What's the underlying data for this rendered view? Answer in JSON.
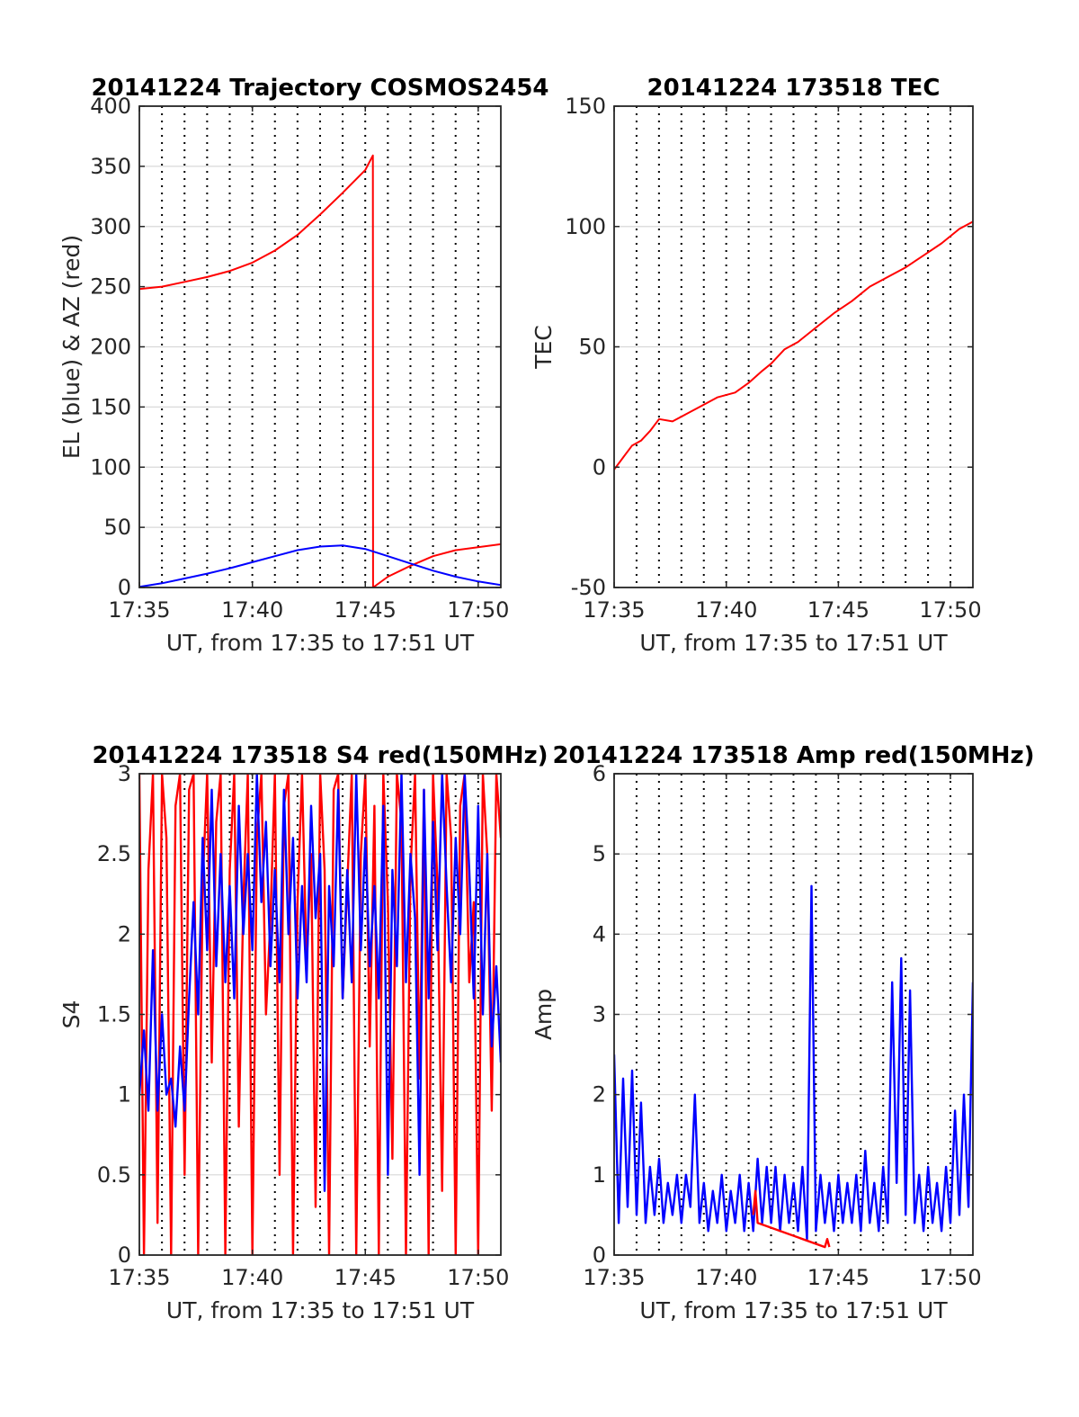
{
  "colors": {
    "red": "#ff0000",
    "blue": "#0000ff",
    "grid": "#d9d9d9",
    "axis": "#262626"
  },
  "chart_data": [
    {
      "type": "line",
      "title": "20141224 Trajectory COSMOS2454",
      "xlabel": "UT, from 17:35 to 17:51 UT",
      "ylabel": "EL (blue) & AZ (red)",
      "xlim": [
        17.5833,
        17.85
      ],
      "ylim": [
        0,
        400
      ],
      "xticks": [
        17.5833,
        17.6667,
        17.75,
        17.8333
      ],
      "xtick_labels": [
        "17:35",
        "17:40",
        "17:45",
        "17:50"
      ],
      "yticks": [
        0,
        50,
        100,
        150,
        200,
        250,
        300,
        350,
        400
      ],
      "ytick_labels": [
        "0",
        "50",
        "100",
        "150",
        "200",
        "250",
        "300",
        "350",
        "400"
      ],
      "vlines_dotted": true,
      "grid": "horizontal",
      "series": [
        {
          "color": "red",
          "x": [
            17.5833,
            17.6,
            17.6167,
            17.6333,
            17.65,
            17.6667,
            17.6833,
            17.7,
            17.7167,
            17.7333,
            17.75,
            17.7556,
            17.7557,
            17.7667,
            17.7833,
            17.8,
            17.8167,
            17.85
          ],
          "y": [
            248,
            250,
            254,
            258,
            263,
            270,
            280,
            293,
            310,
            328,
            347,
            359,
            0,
            9,
            18,
            26,
            31,
            36
          ]
        },
        {
          "color": "blue",
          "x": [
            17.5833,
            17.6,
            17.6167,
            17.6333,
            17.65,
            17.6667,
            17.6833,
            17.7,
            17.7167,
            17.7333,
            17.75,
            17.7667,
            17.7833,
            17.8,
            17.8167,
            17.8333,
            17.85
          ],
          "y": [
            0.5,
            3.5,
            7.5,
            11.5,
            16,
            21,
            26,
            31,
            34,
            35,
            32,
            26,
            20,
            14,
            9,
            5,
            2
          ]
        }
      ]
    },
    {
      "type": "line",
      "title": "20141224 173518 TEC",
      "xlabel": "UT, from 17:35 to 17:51 UT",
      "ylabel": "TEC",
      "xlim": [
        17.5833,
        17.85
      ],
      "ylim": [
        -50,
        150
      ],
      "xticks": [
        17.5833,
        17.6667,
        17.75,
        17.8333
      ],
      "xtick_labels": [
        "17:35",
        "17:40",
        "17:45",
        "17:50"
      ],
      "yticks": [
        -50,
        0,
        50,
        100,
        150
      ],
      "ytick_labels": [
        "-50",
        "0",
        "50",
        "100",
        "150"
      ],
      "vlines_dotted": true,
      "grid": "horizontal",
      "series": [
        {
          "color": "red",
          "x": [
            17.5833,
            17.59,
            17.5967,
            17.6033,
            17.61,
            17.6167,
            17.6267,
            17.6367,
            17.6467,
            17.66,
            17.6733,
            17.6833,
            17.6933,
            17.7,
            17.71,
            17.72,
            17.7333,
            17.7467,
            17.76,
            17.7733,
            17.7867,
            17.8,
            17.8133,
            17.8267,
            17.84,
            17.85
          ],
          "y": [
            -1,
            4,
            9,
            11,
            15,
            20,
            19,
            22,
            25,
            29,
            31,
            35,
            40,
            43,
            49,
            52,
            58,
            64,
            69,
            75,
            79,
            83,
            88,
            93,
            99,
            102
          ]
        }
      ]
    },
    {
      "type": "line",
      "title": "20141224 173518 S4 red(150MHz)",
      "xlabel": "UT, from 17:35 to 17:51 UT",
      "ylabel": "S4",
      "xlim": [
        17.5833,
        17.85
      ],
      "ylim": [
        0,
        3
      ],
      "xticks": [
        17.5833,
        17.6667,
        17.75,
        17.8333
      ],
      "xtick_labels": [
        "17:35",
        "17:40",
        "17:45",
        "17:50"
      ],
      "yticks": [
        0,
        0.5,
        1,
        1.5,
        2,
        2.5,
        3
      ],
      "ytick_labels": [
        "0",
        "0.5",
        "1",
        "1.5",
        "2",
        "2.5",
        "3"
      ],
      "vlines_dotted": true,
      "grid": "horizontal",
      "series": [
        {
          "color": "red",
          "x": [
            17.5833,
            17.5867,
            17.59,
            17.5933,
            17.5967,
            17.6,
            17.6033,
            17.6067,
            17.61,
            17.6133,
            17.6167,
            17.62,
            17.6233,
            17.6267,
            17.63,
            17.6333,
            17.6367,
            17.64,
            17.6433,
            17.6467,
            17.65,
            17.6533,
            17.6567,
            17.66,
            17.6633,
            17.6667,
            17.67,
            17.6733,
            17.6767,
            17.68,
            17.6833,
            17.6867,
            17.69,
            17.6933,
            17.6967,
            17.7,
            17.7033,
            17.7067,
            17.71,
            17.7133,
            17.7167,
            17.72,
            17.7233,
            17.7267,
            17.73,
            17.7333,
            17.7367,
            17.74,
            17.7433,
            17.7467,
            17.75,
            17.7533,
            17.7567,
            17.76,
            17.7633,
            17.7667,
            17.77,
            17.7733,
            17.7767,
            17.78,
            17.7833,
            17.7867,
            17.79,
            17.7933,
            17.7967,
            17.8,
            17.8033,
            17.8067,
            17.81,
            17.8133,
            17.8167,
            17.82,
            17.8233,
            17.8267,
            17.83,
            17.8333,
            17.8367,
            17.84,
            17.8433,
            17.8467,
            17.85
          ],
          "y": [
            3,
            0,
            2.4,
            3,
            0.2,
            3,
            2.6,
            0,
            2.8,
            3,
            0.5,
            2.9,
            3,
            0,
            2.3,
            3,
            1.2,
            2.7,
            3,
            0,
            2.4,
            3,
            0.8,
            2.2,
            3,
            0,
            2.6,
            3,
            1.5,
            2.1,
            3,
            0.5,
            2.8,
            3,
            0,
            2.2,
            3,
            1.8,
            2.5,
            0.3,
            3,
            2.4,
            0,
            2.9,
            3,
            1.6,
            2.3,
            3,
            0,
            2.5,
            3,
            1.3,
            2.8,
            0,
            3,
            2.2,
            0.6,
            3,
            2.7,
            0,
            2.4,
            3,
            1.1,
            2.9,
            0,
            3,
            2.3,
            0.4,
            3,
            2.6,
            0,
            2.8,
            3,
            1.7,
            2.2,
            0,
            3,
            2.5,
            0.9,
            3,
            2.6
          ]
        },
        {
          "color": "blue",
          "x": [
            17.5833,
            17.5867,
            17.59,
            17.5933,
            17.5967,
            17.6,
            17.6033,
            17.6067,
            17.61,
            17.6133,
            17.6167,
            17.62,
            17.6233,
            17.6267,
            17.63,
            17.6333,
            17.6367,
            17.64,
            17.6433,
            17.6467,
            17.65,
            17.6533,
            17.6567,
            17.66,
            17.6633,
            17.6667,
            17.67,
            17.6733,
            17.6767,
            17.68,
            17.6833,
            17.6867,
            17.69,
            17.6933,
            17.6967,
            17.7,
            17.7033,
            17.7067,
            17.71,
            17.7133,
            17.7167,
            17.72,
            17.7233,
            17.7267,
            17.73,
            17.7333,
            17.7367,
            17.74,
            17.7433,
            17.7467,
            17.75,
            17.7533,
            17.7567,
            17.76,
            17.7633,
            17.7667,
            17.77,
            17.7733,
            17.7767,
            17.78,
            17.7833,
            17.7867,
            17.79,
            17.7933,
            17.7967,
            17.8,
            17.8033,
            17.8067,
            17.81,
            17.8133,
            17.8167,
            17.82,
            17.8233,
            17.8267,
            17.83,
            17.8333,
            17.8367,
            17.84,
            17.8433,
            17.8467,
            17.85
          ],
          "y": [
            1.0,
            1.4,
            0.9,
            1.9,
            0.9,
            1.5,
            1.0,
            1.1,
            0.8,
            1.3,
            0.9,
            1.6,
            2.2,
            1.5,
            2.6,
            1.9,
            2.9,
            1.8,
            2.5,
            1.7,
            2.3,
            1.6,
            2.8,
            2.0,
            2.5,
            1.9,
            3.0,
            2.2,
            2.7,
            1.8,
            2.4,
            1.7,
            2.9,
            2.0,
            2.6,
            1.6,
            2.3,
            1.7,
            2.8,
            2.1,
            2.5,
            0.4,
            2.3,
            1.8,
            2.9,
            1.6,
            2.4,
            1.7,
            3.0,
            1.9,
            2.6,
            1.8,
            2.3,
            1.6,
            2.8,
            0.5,
            2.4,
            1.8,
            3.0,
            1.7,
            2.5,
            2.1,
            0.5,
            2.9,
            1.6,
            2.7,
            1.9,
            3.0,
            2.3,
            1.7,
            2.6,
            2.0,
            3.0,
            2.4,
            1.6,
            2.8,
            1.5,
            2.5,
            1.3,
            1.8,
            1.2
          ]
        }
      ]
    },
    {
      "type": "line",
      "title": "20141224 173518 Amp red(150MHz)",
      "xlabel": "UT, from 17:35 to 17:51 UT",
      "ylabel": "Amp",
      "xlim": [
        17.5833,
        17.85
      ],
      "ylim": [
        0,
        6
      ],
      "xticks": [
        17.5833,
        17.6667,
        17.75,
        17.8333
      ],
      "xtick_labels": [
        "17:35",
        "17:40",
        "17:45",
        "17:50"
      ],
      "yticks": [
        0,
        1,
        2,
        3,
        4,
        5,
        6
      ],
      "ytick_labels": [
        "0",
        "1",
        "2",
        "3",
        "4",
        "5",
        "6"
      ],
      "vlines_dotted": true,
      "grid": "horizontal",
      "series": [
        {
          "color": "blue",
          "x": [
            17.5833,
            17.5867,
            17.59,
            17.5933,
            17.5967,
            17.6,
            17.6033,
            17.6067,
            17.61,
            17.6133,
            17.6167,
            17.62,
            17.6233,
            17.6267,
            17.63,
            17.6333,
            17.6367,
            17.64,
            17.6433,
            17.6467,
            17.65,
            17.6533,
            17.6567,
            17.66,
            17.6633,
            17.6667,
            17.67,
            17.6733,
            17.6767,
            17.68,
            17.6833,
            17.6867,
            17.69,
            17.6933,
            17.6967,
            17.7,
            17.7033,
            17.7067,
            17.71,
            17.7133,
            17.7167,
            17.72,
            17.7233,
            17.7267,
            17.73,
            17.7333,
            17.7367,
            17.74,
            17.7433,
            17.7467,
            17.75,
            17.7533,
            17.7567,
            17.76,
            17.7633,
            17.7667,
            17.77,
            17.7733,
            17.7767,
            17.78,
            17.7833,
            17.7867,
            17.79,
            17.7933,
            17.7967,
            17.8,
            17.8033,
            17.8067,
            17.81,
            17.8133,
            17.8167,
            17.82,
            17.8233,
            17.8267,
            17.83,
            17.8333,
            17.8367,
            17.84,
            17.8433,
            17.8467,
            17.85
          ],
          "y": [
            2.5,
            0.4,
            2.2,
            0.6,
            2.3,
            0.5,
            1.9,
            0.4,
            1.1,
            0.5,
            1.2,
            0.4,
            0.9,
            0.5,
            1.0,
            0.4,
            1.0,
            0.6,
            2.0,
            0.4,
            0.9,
            0.3,
            0.8,
            0.4,
            1.0,
            0.3,
            0.8,
            0.4,
            1.0,
            0.3,
            0.9,
            0.3,
            1.2,
            0.4,
            1.1,
            0.4,
            1.1,
            0.3,
            1.0,
            0.4,
            0.9,
            0.3,
            1.1,
            0.2,
            4.6,
            0.3,
            1.0,
            0.4,
            0.9,
            0.3,
            1.0,
            0.4,
            0.9,
            0.4,
            1.0,
            0.3,
            1.3,
            0.4,
            0.9,
            0.3,
            1.1,
            0.4,
            3.4,
            0.9,
            3.7,
            0.5,
            3.3,
            0.4,
            1.0,
            0.3,
            1.1,
            0.4,
            0.9,
            0.3,
            1.1,
            0.4,
            1.8,
            0.5,
            2.0,
            0.6,
            3.4
          ]
        },
        {
          "color": "red",
          "x": [
            17.6867,
            17.6883,
            17.69,
            17.74,
            17.7417,
            17.7433
          ],
          "y": [
            0.5,
            0.8,
            0.4,
            0.1,
            0.2,
            0.1
          ]
        }
      ]
    }
  ]
}
